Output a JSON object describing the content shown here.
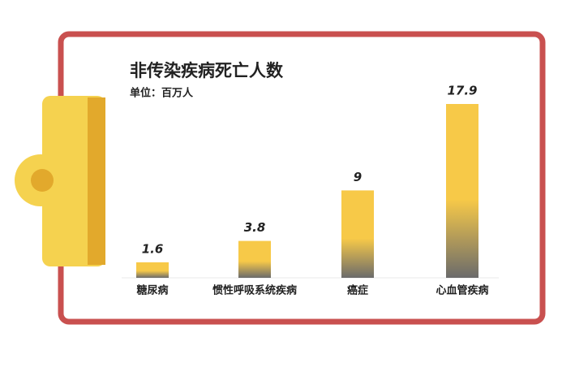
{
  "chart_data": {
    "type": "bar",
    "title": "非传染疾病死亡人数",
    "subtitle": "单位：百万人",
    "categories": [
      "糖尿病",
      "惯性呼吸系统疾病",
      "癌症",
      "心血管疾病"
    ],
    "values": [
      1.6,
      3.8,
      9,
      17.9
    ],
    "color": "#f7c948"
  }
}
